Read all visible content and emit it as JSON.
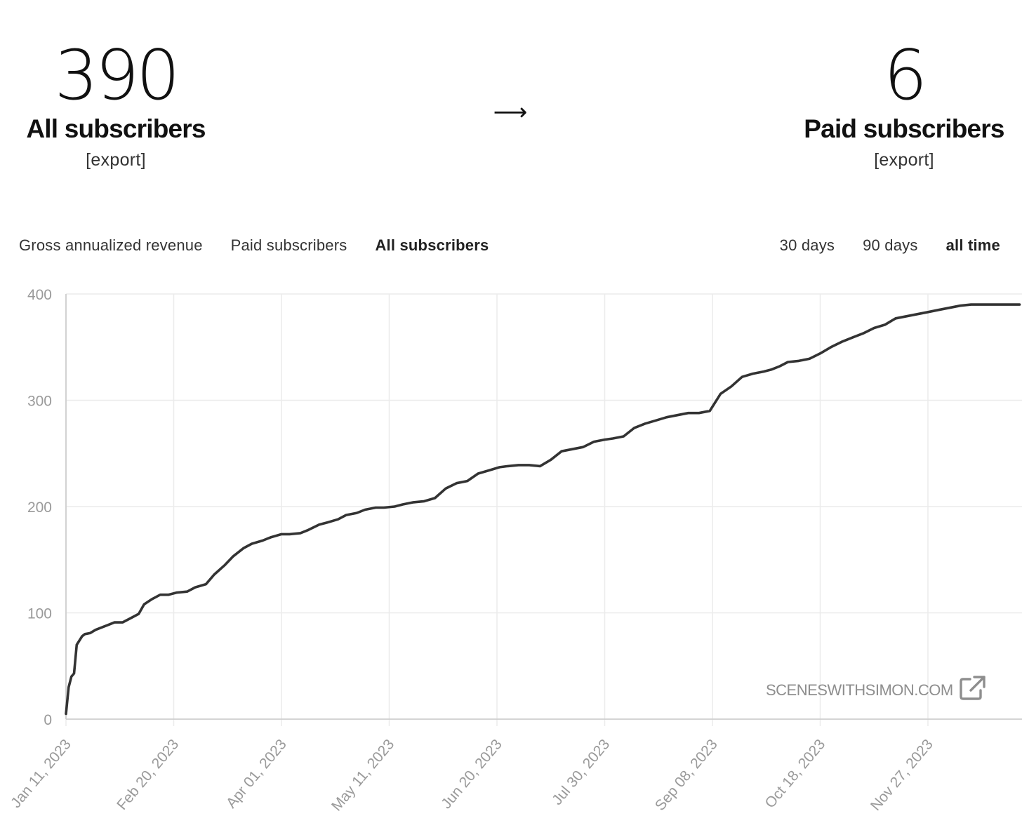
{
  "summary": {
    "all_subscribers": {
      "value": "390",
      "label": "All subscribers",
      "export_label": "[export]"
    },
    "arrow": "⟶",
    "paid_subscribers": {
      "value": "6",
      "label": "Paid subscribers",
      "export_label": "[export]"
    }
  },
  "tabs": [
    {
      "label": "Gross annualized revenue",
      "active": false
    },
    {
      "label": "Paid subscribers",
      "active": false
    },
    {
      "label": "All subscribers",
      "active": true
    }
  ],
  "ranges": [
    {
      "label": "30 days",
      "active": false
    },
    {
      "label": "90 days",
      "active": false
    },
    {
      "label": "all time",
      "active": true
    }
  ],
  "watermark": {
    "text": "SCENESWITHSIMON.COM",
    "icon": "external-link-icon"
  },
  "colors": {
    "line": "#333333",
    "grid": "#ebebeb",
    "axis_text": "#9a9a9a"
  },
  "chart_data": {
    "type": "line",
    "title": "",
    "xlabel": "",
    "ylabel": "",
    "ylim": [
      0,
      400
    ],
    "yticks": [
      0,
      100,
      200,
      300,
      400
    ],
    "xlim": [
      "2023-01-11",
      "2023-12-31"
    ],
    "xtick_labels": [
      "Jan 11, 2023",
      "Feb 20, 2023",
      "Apr 01, 2023",
      "May 11, 2023",
      "Jun 20, 2023",
      "Jul 30, 2023",
      "Sep 08, 2023",
      "Oct 18, 2023",
      "Nov 27, 2023"
    ],
    "grid": true,
    "series": [
      {
        "x": [
          "2023-01-11",
          "2023-01-12",
          "2023-01-13",
          "2023-01-14",
          "2023-01-15",
          "2023-01-17",
          "2023-01-18",
          "2023-01-20",
          "2023-01-22",
          "2023-01-25",
          "2023-01-27",
          "2023-01-29",
          "2023-02-01",
          "2023-02-04",
          "2023-02-07",
          "2023-02-09",
          "2023-02-12",
          "2023-02-15",
          "2023-02-18",
          "2023-02-21",
          "2023-02-25",
          "2023-02-28",
          "2023-03-04",
          "2023-03-07",
          "2023-03-11",
          "2023-03-14",
          "2023-03-18",
          "2023-03-21",
          "2023-03-25",
          "2023-03-28",
          "2023-04-01",
          "2023-04-04",
          "2023-04-08",
          "2023-04-11",
          "2023-04-15",
          "2023-04-18",
          "2023-04-22",
          "2023-04-25",
          "2023-04-29",
          "2023-05-02",
          "2023-05-06",
          "2023-05-09",
          "2023-05-13",
          "2023-05-16",
          "2023-05-20",
          "2023-05-24",
          "2023-05-28",
          "2023-06-01",
          "2023-06-05",
          "2023-06-09",
          "2023-06-13",
          "2023-06-17",
          "2023-06-21",
          "2023-06-24",
          "2023-06-28",
          "2023-07-02",
          "2023-07-06",
          "2023-07-10",
          "2023-07-14",
          "2023-07-18",
          "2023-07-22",
          "2023-07-26",
          "2023-07-30",
          "2023-08-02",
          "2023-08-06",
          "2023-08-10",
          "2023-08-14",
          "2023-08-18",
          "2023-08-22",
          "2023-08-26",
          "2023-08-30",
          "2023-09-03",
          "2023-09-07",
          "2023-09-11",
          "2023-09-15",
          "2023-09-19",
          "2023-09-23",
          "2023-09-27",
          "2023-09-30",
          "2023-10-03",
          "2023-10-06",
          "2023-10-10",
          "2023-10-14",
          "2023-10-18",
          "2023-10-22",
          "2023-10-26",
          "2023-10-30",
          "2023-11-03",
          "2023-11-07",
          "2023-11-11",
          "2023-11-15",
          "2023-11-19",
          "2023-11-23",
          "2023-11-27",
          "2023-12-01",
          "2023-12-05",
          "2023-12-09",
          "2023-12-13",
          "2023-12-17",
          "2023-12-21",
          "2023-12-25",
          "2023-12-29",
          "2023-12-31"
        ],
        "values": [
          5,
          30,
          40,
          43,
          70,
          78,
          80,
          81,
          84,
          87,
          89,
          91,
          91,
          95,
          99,
          108,
          113,
          117,
          117,
          119,
          120,
          124,
          127,
          136,
          145,
          153,
          161,
          165,
          168,
          171,
          174,
          174,
          175,
          178,
          183,
          185,
          188,
          192,
          194,
          197,
          199,
          199,
          200,
          202,
          204,
          205,
          208,
          217,
          222,
          224,
          231,
          234,
          237,
          238,
          239,
          239,
          238,
          244,
          252,
          254,
          256,
          261,
          263,
          264,
          266,
          274,
          278,
          281,
          284,
          286,
          288,
          288,
          290,
          306,
          313,
          322,
          325,
          327,
          329,
          332,
          336,
          337,
          339,
          344,
          350,
          355,
          359,
          363,
          368,
          371,
          377,
          379,
          381,
          383,
          385,
          387,
          389,
          390,
          390,
          390,
          390,
          390,
          390
        ]
      }
    ]
  }
}
